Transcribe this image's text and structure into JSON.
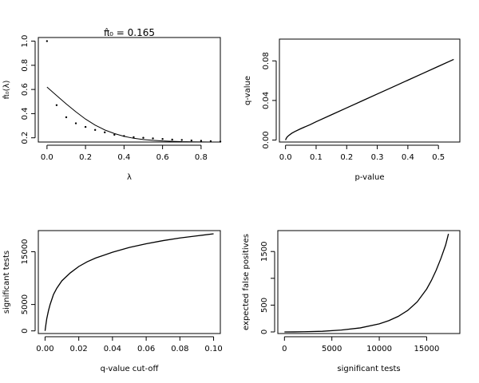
{
  "chart_data": [
    {
      "id": "pi0",
      "type": "scatter",
      "title": "π̂₀ = 0.165",
      "xlabel": "λ",
      "ylabel": "π̂₀(λ)",
      "xlim": [
        -0.045,
        0.9
      ],
      "ylim": [
        0.165,
        1.03
      ],
      "xticks": [
        0,
        0.2,
        0.4,
        0.6,
        0.8
      ],
      "xtick_labels": [
        "0.0",
        "0.2",
        "0.4",
        "0.6",
        "0.8"
      ],
      "yticks": [
        0.2,
        0.4,
        0.6,
        0.8,
        1.0
      ],
      "ytick_labels": [
        "0.2",
        "0.4",
        "0.6",
        "0.8",
        "1.0"
      ],
      "ytick_rotated": true,
      "points_x": [
        0,
        0.05,
        0.1,
        0.15,
        0.2,
        0.25,
        0.3,
        0.35,
        0.4,
        0.45,
        0.5,
        0.55,
        0.6,
        0.65,
        0.7,
        0.75,
        0.8,
        0.85,
        0.9
      ],
      "points_y": [
        1.0,
        0.47,
        0.37,
        0.32,
        0.29,
        0.265,
        0.245,
        0.225,
        0.215,
        0.205,
        0.2,
        0.195,
        0.19,
        0.185,
        0.182,
        0.178,
        0.175,
        0.172,
        0.168
      ],
      "line_x": [
        0,
        0.05,
        0.1,
        0.15,
        0.2,
        0.25,
        0.3,
        0.35,
        0.4,
        0.45,
        0.5,
        0.55,
        0.6,
        0.65,
        0.7,
        0.75,
        0.8,
        0.85,
        0.9
      ],
      "line_y": [
        0.62,
        0.55,
        0.48,
        0.415,
        0.355,
        0.305,
        0.265,
        0.235,
        0.212,
        0.196,
        0.186,
        0.179,
        0.174,
        0.171,
        0.168,
        0.167,
        0.166,
        0.165,
        0.165
      ],
      "grid": false,
      "legend": "none"
    },
    {
      "id": "qp",
      "type": "line",
      "title": "",
      "xlabel": "p-value",
      "ylabel": "q-value",
      "xlim": [
        -0.02,
        0.57
      ],
      "ylim": [
        -0.002,
        0.102
      ],
      "xticks": [
        0,
        0.1,
        0.2,
        0.3,
        0.4,
        0.5
      ],
      "xtick_labels": [
        "0.0",
        "0.1",
        "0.2",
        "0.3",
        "0.4",
        "0.5"
      ],
      "yticks": [
        0,
        0.04,
        0.08
      ],
      "ytick_labels": [
        "0.00",
        "0.04",
        "0.08"
      ],
      "ytick_rotated": true,
      "x": [
        0,
        0.002,
        0.005,
        0.01,
        0.02,
        0.03,
        0.05,
        0.08,
        0.1,
        0.15,
        0.2,
        0.25,
        0.3,
        0.35,
        0.4,
        0.45,
        0.5,
        0.55
      ],
      "y": [
        0,
        0.0015,
        0.003,
        0.0045,
        0.0068,
        0.0085,
        0.0115,
        0.0155,
        0.0185,
        0.0255,
        0.0325,
        0.0395,
        0.0465,
        0.0535,
        0.0605,
        0.0675,
        0.0745,
        0.0815
      ],
      "grid": false,
      "legend": "none"
    },
    {
      "id": "sig",
      "type": "line",
      "title": "",
      "xlabel": "q-value cut-off",
      "ylabel": "significant tests",
      "xlim": [
        -0.004,
        0.104
      ],
      "ylim": [
        -500,
        19000
      ],
      "xticks": [
        0,
        0.02,
        0.04,
        0.06,
        0.08,
        0.1
      ],
      "xtick_labels": [
        "0.00",
        "0.02",
        "0.04",
        "0.06",
        "0.08",
        "0.10"
      ],
      "yticks": [
        0,
        5000,
        15000
      ],
      "ytick_labels": [
        "0",
        "5000",
        "15000"
      ],
      "ytick_rotated": true,
      "x": [
        0,
        0.0005,
        0.001,
        0.002,
        0.003,
        0.005,
        0.007,
        0.01,
        0.015,
        0.02,
        0.025,
        0.03,
        0.04,
        0.05,
        0.06,
        0.07,
        0.08,
        0.09,
        0.1
      ],
      "y": [
        0,
        1200,
        2300,
        3800,
        5000,
        6900,
        8100,
        9500,
        11000,
        12200,
        13100,
        13800,
        14900,
        15800,
        16500,
        17100,
        17600,
        18000,
        18400
      ],
      "grid": false,
      "legend": "none"
    },
    {
      "id": "efp",
      "type": "line",
      "title": "",
      "xlabel": "significant tests",
      "ylabel": "expected false positives",
      "xlim": [
        -700,
        18500
      ],
      "ylim": [
        -30,
        1890
      ],
      "xticks": [
        0,
        5000,
        10000,
        15000
      ],
      "xtick_labels": [
        "0",
        "5000",
        "10000",
        "15000"
      ],
      "yticks": [
        0,
        500,
        1000,
        1500
      ],
      "ytick_labels": [
        "0",
        "500",
        "",
        "1500"
      ],
      "ytick_rotated": true,
      "x": [
        0,
        1000,
        2000,
        4000,
        6000,
        8000,
        10000,
        11000,
        12000,
        13000,
        14000,
        15000,
        15500,
        16000,
        16500,
        17000,
        17300
      ],
      "y": [
        0,
        1,
        3,
        12,
        35,
        75,
        150,
        210,
        290,
        400,
        560,
        800,
        960,
        1150,
        1370,
        1620,
        1830
      ],
      "grid": false,
      "legend": "none"
    }
  ]
}
